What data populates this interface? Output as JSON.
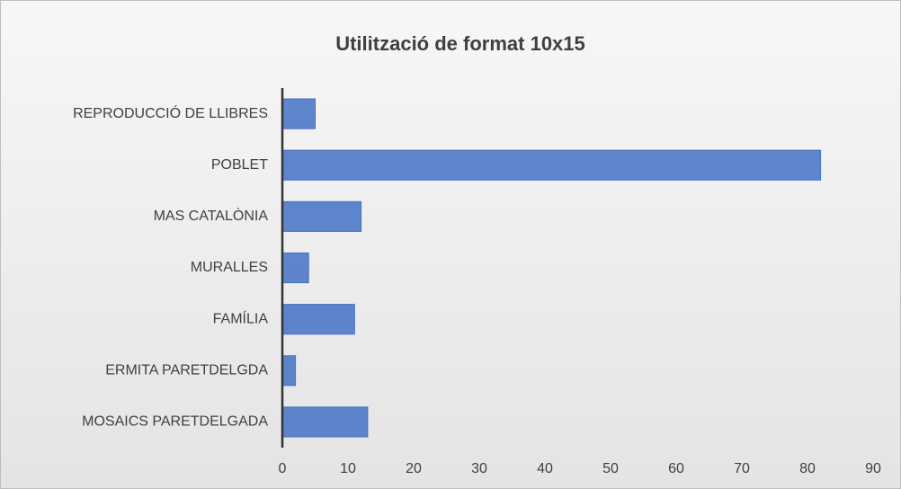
{
  "chart_data": {
    "type": "hbar",
    "title": "Utilització de format 10x15",
    "categories": [
      "REPRODUCCIÓ DE LLIBRES",
      "POBLET",
      "MAS CATALÒNIA",
      "MURALLES",
      "FAMÍLIA",
      "ERMITA PARETDELGDA",
      "MOSAICS PARETDELGADA"
    ],
    "values": [
      5,
      82,
      12,
      4,
      11,
      2,
      13
    ],
    "color": "#4472c4",
    "xlim": [
      0,
      90
    ],
    "xticks": [
      0,
      10,
      20,
      30,
      40,
      50,
      60,
      70,
      80,
      90
    ],
    "grid": true
  }
}
